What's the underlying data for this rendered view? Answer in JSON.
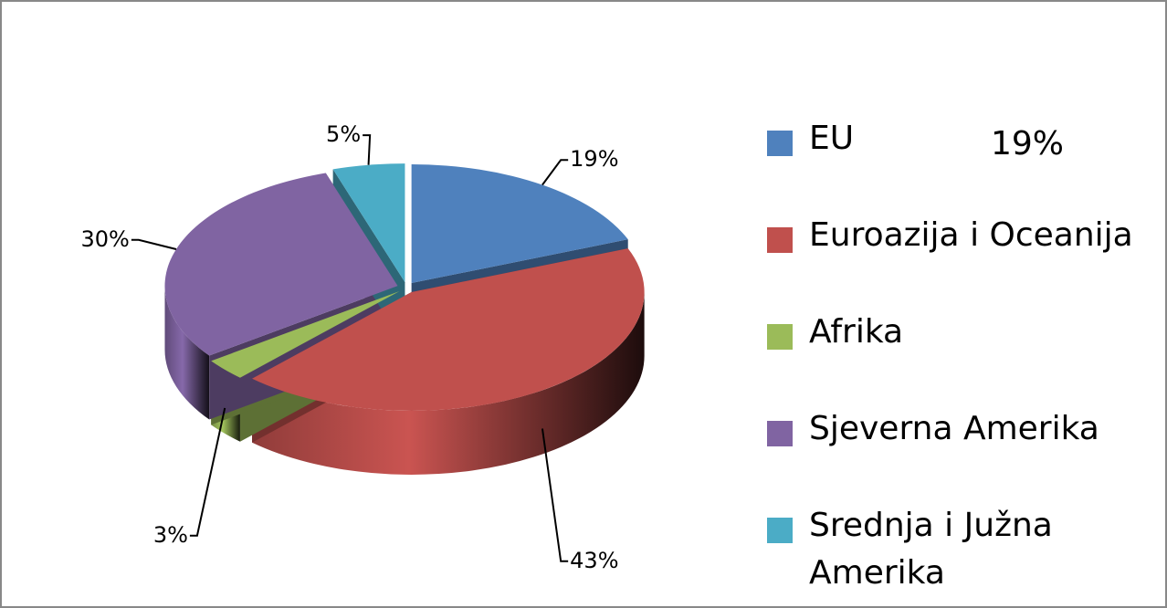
{
  "chart_data": {
    "type": "pie3d",
    "categories": [
      "EU",
      "Euroazija i Oceanija",
      "Afrika",
      "Sjeverna Amerika",
      "Srednja i Južna Amerika"
    ],
    "values": [
      19,
      43,
      3,
      30,
      5
    ],
    "value_labels": [
      "19%",
      "43%",
      "3%",
      "30%",
      "5%"
    ],
    "colors": [
      "#4f81bd",
      "#c0504d",
      "#9bbb59",
      "#8064a2",
      "#4bacc6"
    ],
    "annotations": [
      "19%"
    ],
    "legend": "right"
  }
}
